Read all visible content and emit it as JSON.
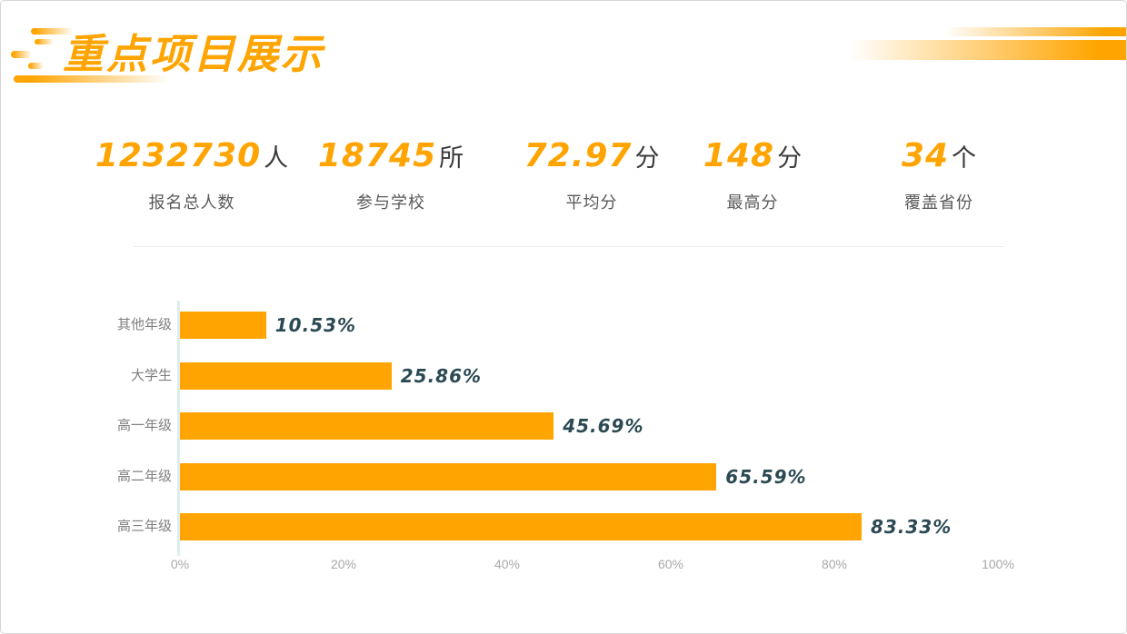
{
  "title": "重点项目展示",
  "colors": {
    "accent": "#FFA400",
    "bar": "#FFA400",
    "value_label": "#2C4A54",
    "stat_unit": "#3a3a3a",
    "stat_label": "#595959",
    "category_label": "#7f7f7f",
    "tick_label": "#a8a8a8",
    "axis_line": "#ddeef1"
  },
  "stats": {
    "items": [
      {
        "value": "1232730",
        "unit": "人",
        "label": "报名总人数"
      },
      {
        "value": "18745",
        "unit": "所",
        "label": "参与学校"
      },
      {
        "value": "72.97",
        "unit": "分",
        "label": "平均分"
      },
      {
        "value": "148",
        "unit": "分",
        "label": "最高分"
      },
      {
        "value": "34",
        "unit": "个",
        "label": "覆盖省份"
      }
    ]
  },
  "chart_data": {
    "type": "bar",
    "orientation": "horizontal",
    "categories": [
      "其他年级",
      "大学生",
      "高一年级",
      "高二年级",
      "高三年级"
    ],
    "values": [
      10.53,
      25.86,
      45.69,
      65.59,
      83.33
    ],
    "value_labels": [
      "10.53%",
      "25.86%",
      "45.69%",
      "65.59%",
      "83.33%"
    ],
    "x_ticks": [
      "0%",
      "20%",
      "40%",
      "60%",
      "80%",
      "100%"
    ],
    "xlim": [
      0,
      100
    ],
    "bar_color": "#FFA400",
    "grid": "off",
    "legend": "none"
  }
}
